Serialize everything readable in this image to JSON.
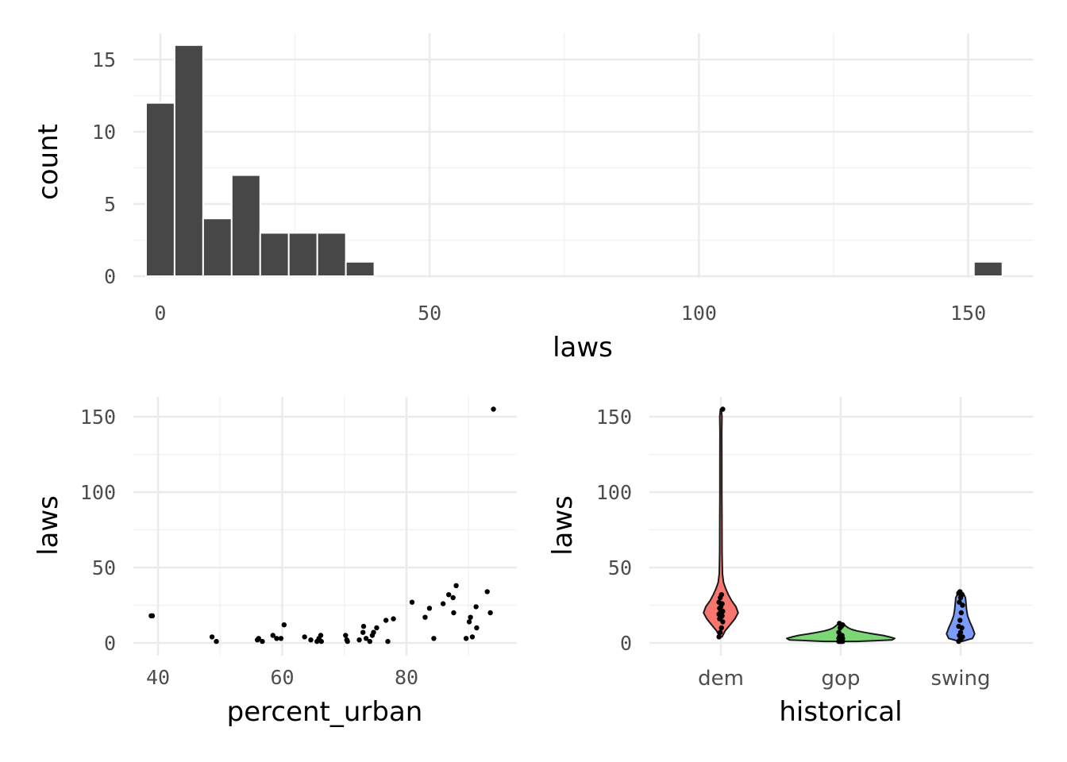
{
  "chart_data": [
    {
      "type": "histogram",
      "xlabel": "laws",
      "ylabel": "count",
      "xlim": [
        -5,
        162
      ],
      "ylim": [
        0,
        16
      ],
      "xticks": [
        0,
        50,
        100,
        150
      ],
      "yticks": [
        0,
        5,
        10,
        15
      ],
      "bin_width": 5.3,
      "bins": [
        {
          "center": 0.0,
          "count": 12
        },
        {
          "center": 5.3,
          "count": 16
        },
        {
          "center": 10.6,
          "count": 4
        },
        {
          "center": 15.9,
          "count": 7
        },
        {
          "center": 21.2,
          "count": 3
        },
        {
          "center": 26.5,
          "count": 3
        },
        {
          "center": 31.8,
          "count": 3
        },
        {
          "center": 37.1,
          "count": 1
        },
        {
          "center": 153.7,
          "count": 1
        }
      ],
      "bar_color": "#474747",
      "grid": true
    },
    {
      "type": "scatter",
      "xlabel": "percent_urban",
      "ylabel": "laws",
      "xlim": [
        36.5,
        96
      ],
      "ylim": [
        0,
        155
      ],
      "xticks": [
        40,
        60,
        80
      ],
      "yticks": [
        0,
        50,
        100,
        150
      ],
      "points": [
        {
          "x": 38.9,
          "y": 18
        },
        {
          "x": 39.1,
          "y": 18
        },
        {
          "x": 48.7,
          "y": 4
        },
        {
          "x": 49.4,
          "y": 1
        },
        {
          "x": 56.0,
          "y": 2
        },
        {
          "x": 56.2,
          "y": 3
        },
        {
          "x": 56.8,
          "y": 1
        },
        {
          "x": 58.5,
          "y": 5
        },
        {
          "x": 59.1,
          "y": 3
        },
        {
          "x": 59.8,
          "y": 3
        },
        {
          "x": 60.3,
          "y": 12
        },
        {
          "x": 63.6,
          "y": 4
        },
        {
          "x": 64.6,
          "y": 2
        },
        {
          "x": 65.6,
          "y": 1
        },
        {
          "x": 65.9,
          "y": 3
        },
        {
          "x": 66.2,
          "y": 5
        },
        {
          "x": 66.3,
          "y": 1
        },
        {
          "x": 70.2,
          "y": 5
        },
        {
          "x": 70.4,
          "y": 2
        },
        {
          "x": 70.5,
          "y": 1
        },
        {
          "x": 72.4,
          "y": 2
        },
        {
          "x": 73.0,
          "y": 7
        },
        {
          "x": 73.1,
          "y": 11
        },
        {
          "x": 73.5,
          "y": 3
        },
        {
          "x": 74.1,
          "y": 1
        },
        {
          "x": 74.5,
          "y": 5
        },
        {
          "x": 74.7,
          "y": 7
        },
        {
          "x": 75.2,
          "y": 10
        },
        {
          "x": 76.7,
          "y": 15
        },
        {
          "x": 77.0,
          "y": 1
        },
        {
          "x": 77.9,
          "y": 16
        },
        {
          "x": 80.9,
          "y": 27
        },
        {
          "x": 83.0,
          "y": 17
        },
        {
          "x": 83.7,
          "y": 23
        },
        {
          "x": 84.4,
          "y": 3
        },
        {
          "x": 85.9,
          "y": 26
        },
        {
          "x": 86.8,
          "y": 32
        },
        {
          "x": 87.5,
          "y": 30
        },
        {
          "x": 87.6,
          "y": 20
        },
        {
          "x": 88.0,
          "y": 38
        },
        {
          "x": 89.6,
          "y": 3
        },
        {
          "x": 90.1,
          "y": 14
        },
        {
          "x": 90.3,
          "y": 17
        },
        {
          "x": 90.6,
          "y": 4
        },
        {
          "x": 91.2,
          "y": 24
        },
        {
          "x": 91.3,
          "y": 10
        },
        {
          "x": 93.0,
          "y": 34
        },
        {
          "x": 93.5,
          "y": 20
        },
        {
          "x": 94.0,
          "y": 155
        }
      ],
      "point_color": "#000000",
      "grid": true
    },
    {
      "type": "violin",
      "xlabel": "historical",
      "ylabel": "laws",
      "ylim": [
        0,
        155
      ],
      "yticks": [
        0,
        50,
        100,
        150
      ],
      "categories": [
        "dem",
        "gop",
        "swing"
      ],
      "groups": [
        {
          "name": "dem",
          "color": "#F8766D",
          "values": [
            4,
            7,
            10,
            14,
            16,
            17,
            18,
            19,
            20,
            20,
            21,
            23,
            24,
            26,
            27,
            30,
            32,
            155
          ],
          "profile": [
            [
              4,
              0.02
            ],
            [
              8,
              0.08
            ],
            [
              12,
              0.17
            ],
            [
              16,
              0.26
            ],
            [
              20,
              0.32
            ],
            [
              24,
              0.28
            ],
            [
              28,
              0.2
            ],
            [
              32,
              0.14
            ],
            [
              36,
              0.09
            ],
            [
              40,
              0.05
            ],
            [
              46,
              0.03
            ],
            [
              60,
              0.022
            ],
            [
              80,
              0.02
            ],
            [
              100,
              0.018
            ],
            [
              120,
              0.017
            ],
            [
              140,
              0.016
            ],
            [
              150,
              0.02
            ],
            [
              155,
              0.008
            ]
          ]
        },
        {
          "name": "gop",
          "color": "#7CD675",
          "values": [
            1,
            1,
            1,
            1,
            2,
            2,
            2,
            3,
            3,
            3,
            3,
            4,
            5,
            5,
            7,
            10,
            11,
            12,
            13
          ],
          "profile": [
            [
              1,
              0.3
            ],
            [
              2,
              0.95
            ],
            [
              3,
              1.0
            ],
            [
              4,
              0.9
            ],
            [
              5,
              0.78
            ],
            [
              6,
              0.6
            ],
            [
              7,
              0.44
            ],
            [
              8,
              0.3
            ],
            [
              9,
              0.2
            ],
            [
              10,
              0.14
            ],
            [
              11,
              0.1
            ],
            [
              12,
              0.07
            ],
            [
              13,
              0.03
            ]
          ]
        },
        {
          "name": "swing",
          "color": "#7C9CFC",
          "values": [
            1,
            2,
            3,
            4,
            5,
            7,
            10,
            11,
            15,
            20,
            25,
            27,
            30,
            32,
            33,
            34
          ],
          "profile": [
            [
              1,
              0.02
            ],
            [
              3,
              0.22
            ],
            [
              6,
              0.26
            ],
            [
              10,
              0.22
            ],
            [
              14,
              0.17
            ],
            [
              18,
              0.13
            ],
            [
              22,
              0.11
            ],
            [
              26,
              0.1
            ],
            [
              30,
              0.09
            ],
            [
              33,
              0.05
            ],
            [
              34,
              0.01
            ]
          ]
        }
      ],
      "grid": true
    }
  ]
}
